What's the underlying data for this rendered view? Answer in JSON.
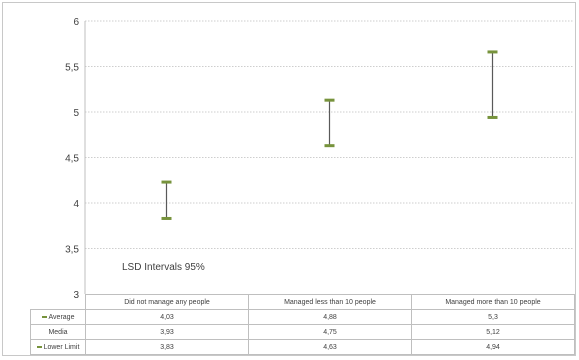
{
  "chart_data": {
    "type": "error-bar",
    "categories": [
      "Did not manage any people",
      "Managed less than 10 people",
      "Managed more than 10 people"
    ],
    "series": [
      {
        "name": "Average",
        "values": [
          4.03,
          4.88,
          5.3
        ]
      },
      {
        "name": "Media",
        "values": [
          3.93,
          4.75,
          5.12
        ]
      },
      {
        "name": "Lower Limit",
        "values": [
          3.83,
          4.63,
          4.94
        ]
      }
    ],
    "display_values": {
      "Average": [
        "4,03",
        "4,88",
        "5,3"
      ],
      "Media": [
        "3,93",
        "4,75",
        "5,12"
      ],
      "Lower Limit": [
        "3,83",
        "4,63",
        "4,94"
      ]
    },
    "ylim": [
      3,
      6
    ],
    "yticks": [
      {
        "v": 3,
        "label": "3"
      },
      {
        "v": 3.5,
        "label": "3,5"
      },
      {
        "v": 4,
        "label": "4"
      },
      {
        "v": 4.5,
        "label": "4,5"
      },
      {
        "v": 5,
        "label": "5"
      },
      {
        "v": 5.5,
        "label": "5,5"
      },
      {
        "v": 6,
        "label": "6"
      }
    ],
    "grid": true,
    "annotation": "LSD Intervals  95%",
    "colors": {
      "bar": "#77933c",
      "stem": "#595959",
      "grid": "#bfbfbf"
    }
  }
}
